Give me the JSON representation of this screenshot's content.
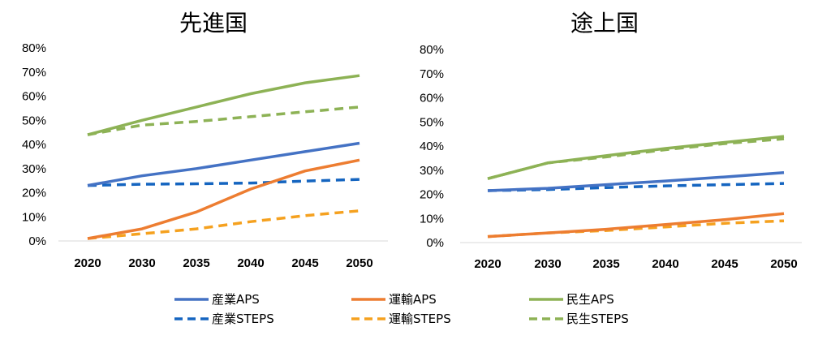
{
  "chart_data": [
    {
      "type": "line",
      "title": "先進国",
      "x": [
        "2020",
        "2030",
        "2035",
        "2040",
        "2045",
        "2050"
      ],
      "y_ticks": [
        "0%",
        "10%",
        "20%",
        "30%",
        "40%",
        "50%",
        "60%",
        "70%",
        "80%"
      ],
      "ylim": [
        0,
        0.8
      ],
      "grid": false,
      "series": [
        {
          "name": "産業APS",
          "color": "#4472C4",
          "style": "solid",
          "values": [
            0.23,
            0.27,
            0.3,
            0.335,
            0.37,
            0.405
          ]
        },
        {
          "name": "運輸APS",
          "color": "#ED7D31",
          "style": "solid",
          "values": [
            0.01,
            0.05,
            0.12,
            0.215,
            0.29,
            0.335
          ]
        },
        {
          "name": "民生APS",
          "color": "#8DB255",
          "style": "solid",
          "values": [
            0.44,
            0.5,
            0.555,
            0.61,
            0.655,
            0.685
          ]
        },
        {
          "name": "産業STEPS",
          "color": "#1565C0",
          "style": "dashed",
          "values": [
            0.23,
            0.235,
            0.237,
            0.24,
            0.248,
            0.255
          ]
        },
        {
          "name": "運輸STEPS",
          "color": "#F5A11F",
          "style": "dashed",
          "values": [
            0.01,
            0.03,
            0.05,
            0.08,
            0.105,
            0.125
          ]
        },
        {
          "name": "民生STEPS",
          "color": "#8DB255",
          "style": "dashed",
          "values": [
            0.44,
            0.48,
            0.495,
            0.515,
            0.535,
            0.555
          ]
        }
      ]
    },
    {
      "type": "line",
      "title": "途上国",
      "x": [
        "2020",
        "2030",
        "2035",
        "2040",
        "2045",
        "2050"
      ],
      "y_ticks": [
        "0%",
        "10%",
        "20%",
        "30%",
        "40%",
        "50%",
        "60%",
        "70%",
        "80%"
      ],
      "ylim": [
        0,
        0.8
      ],
      "grid": false,
      "series": [
        {
          "name": "産業APS",
          "color": "#4472C4",
          "style": "solid",
          "values": [
            0.215,
            0.225,
            0.24,
            0.255,
            0.272,
            0.29
          ]
        },
        {
          "name": "運輸APS",
          "color": "#ED7D31",
          "style": "solid",
          "values": [
            0.025,
            0.04,
            0.055,
            0.075,
            0.095,
            0.12
          ]
        },
        {
          "name": "民生APS",
          "color": "#8DB255",
          "style": "solid",
          "values": [
            0.265,
            0.33,
            0.36,
            0.39,
            0.415,
            0.44
          ]
        },
        {
          "name": "産業STEPS",
          "color": "#1565C0",
          "style": "dashed",
          "values": [
            0.215,
            0.22,
            0.228,
            0.235,
            0.24,
            0.245
          ]
        },
        {
          "name": "運輸STEPS",
          "color": "#F5A11F",
          "style": "dashed",
          "values": [
            0.025,
            0.04,
            0.05,
            0.065,
            0.08,
            0.09
          ]
        },
        {
          "name": "民生STEPS",
          "color": "#8DB255",
          "style": "dashed",
          "values": [
            0.265,
            0.33,
            0.355,
            0.385,
            0.41,
            0.43
          ]
        }
      ]
    }
  ],
  "legend": {
    "items": [
      {
        "label": "産業APS",
        "color": "#4472C4",
        "style": "solid"
      },
      {
        "label": "運輸APS",
        "color": "#ED7D31",
        "style": "solid"
      },
      {
        "label": "民生APS",
        "color": "#8DB255",
        "style": "solid"
      },
      {
        "label": "産業STEPS",
        "color": "#1565C0",
        "style": "dashed"
      },
      {
        "label": "運輸STEPS",
        "color": "#F5A11F",
        "style": "dashed"
      },
      {
        "label": "民生STEPS",
        "color": "#8DB255",
        "style": "dashed"
      }
    ]
  }
}
